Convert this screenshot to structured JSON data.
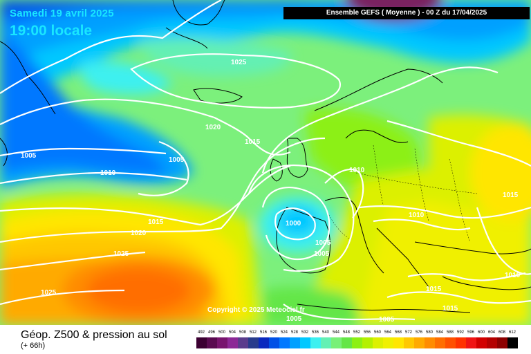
{
  "header": {
    "date": "Samedi 19 avril 2025",
    "time": "19:00 locale",
    "run_info": "Ensemble GEFS  ( Moyenne )  -  00 Z du 17/04/2025"
  },
  "map": {
    "copyright": "Copyright © 2025 Meteociel.fr",
    "isobar_labels": [
      "1025",
      "1020",
      "1015",
      "1005",
      "1010",
      "1005",
      "1020",
      "1015",
      "1025",
      "1025",
      "1000",
      "1005",
      "1005",
      "1010",
      "1010",
      "1015",
      "1015",
      "1015",
      "1010",
      "1005",
      "1005"
    ]
  },
  "footer": {
    "title": "Géop. Z500 & pression au sol",
    "subtitle": "(+ 66h)"
  },
  "legend": {
    "values": [
      "492",
      "496",
      "500",
      "504",
      "508",
      "512",
      "516",
      "520",
      "524",
      "528",
      "532",
      "536",
      "540",
      "544",
      "548",
      "552",
      "556",
      "560",
      "564",
      "568",
      "572",
      "576",
      "580",
      "584",
      "588",
      "592",
      "596",
      "600",
      "604",
      "608",
      "612"
    ],
    "colors": [
      "#3c0032",
      "#5a0a50",
      "#78146e",
      "#8c2896",
      "#5a3c8c",
      "#283c8c",
      "#0a28be",
      "#0050e6",
      "#0078ff",
      "#00a0ff",
      "#00c8ff",
      "#3cf0f0",
      "#64f0b4",
      "#78f078",
      "#64e646",
      "#8cf014",
      "#b4f000",
      "#dcf000",
      "#f0f000",
      "#ffe600",
      "#ffc800",
      "#ffaa00",
      "#ff8c00",
      "#ff6e00",
      "#ff5000",
      "#ff3200",
      "#f01414",
      "#d20000",
      "#b40000",
      "#8c0000",
      "#000000"
    ]
  }
}
